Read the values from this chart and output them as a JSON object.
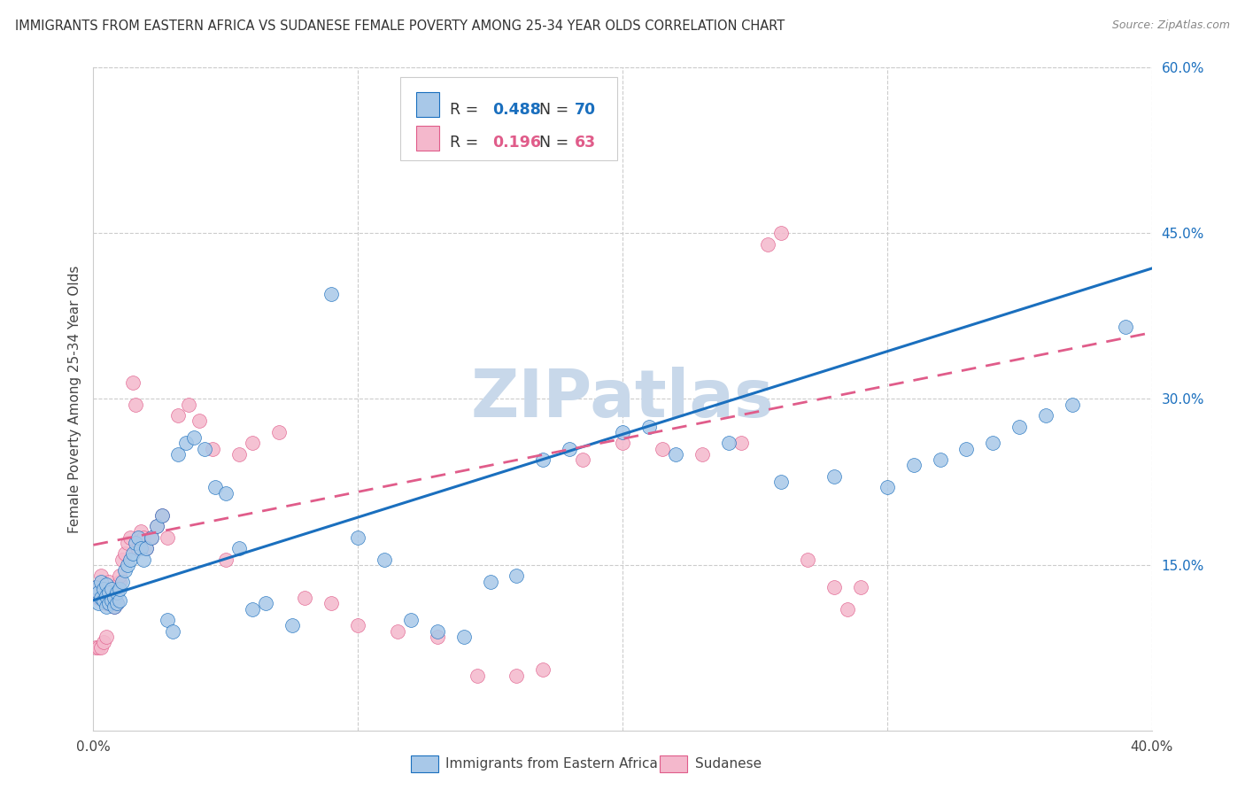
{
  "title": "IMMIGRANTS FROM EASTERN AFRICA VS SUDANESE FEMALE POVERTY AMONG 25-34 YEAR OLDS CORRELATION CHART",
  "source": "Source: ZipAtlas.com",
  "ylabel": "Female Poverty Among 25-34 Year Olds",
  "xlabel_blue": "Immigrants from Eastern Africa",
  "xlabel_pink": "Sudanese",
  "xlim": [
    0.0,
    0.4
  ],
  "ylim": [
    0.0,
    0.6
  ],
  "blue_R": 0.488,
  "blue_N": 70,
  "pink_R": 0.196,
  "pink_N": 63,
  "blue_color": "#a8c8e8",
  "pink_color": "#f4b8cc",
  "blue_line_color": "#1a6fbe",
  "pink_line_color": "#e05c8a",
  "watermark": "ZIPatlas",
  "watermark_color": "#c8d8ea",
  "blue_scatter_x": [
    0.001,
    0.002,
    0.002,
    0.003,
    0.003,
    0.004,
    0.004,
    0.005,
    0.005,
    0.005,
    0.006,
    0.006,
    0.007,
    0.007,
    0.008,
    0.008,
    0.009,
    0.009,
    0.01,
    0.01,
    0.011,
    0.012,
    0.013,
    0.014,
    0.015,
    0.016,
    0.017,
    0.018,
    0.019,
    0.02,
    0.022,
    0.024,
    0.026,
    0.028,
    0.03,
    0.032,
    0.035,
    0.038,
    0.042,
    0.046,
    0.05,
    0.055,
    0.06,
    0.065,
    0.075,
    0.09,
    0.1,
    0.11,
    0.12,
    0.13,
    0.14,
    0.15,
    0.16,
    0.17,
    0.18,
    0.2,
    0.21,
    0.22,
    0.24,
    0.26,
    0.28,
    0.3,
    0.31,
    0.32,
    0.33,
    0.34,
    0.35,
    0.36,
    0.37,
    0.39
  ],
  "blue_scatter_y": [
    0.13,
    0.125,
    0.115,
    0.12,
    0.135,
    0.118,
    0.128,
    0.112,
    0.122,
    0.132,
    0.115,
    0.125,
    0.118,
    0.128,
    0.112,
    0.12,
    0.115,
    0.125,
    0.118,
    0.128,
    0.135,
    0.145,
    0.15,
    0.155,
    0.16,
    0.17,
    0.175,
    0.165,
    0.155,
    0.165,
    0.175,
    0.185,
    0.195,
    0.1,
    0.09,
    0.25,
    0.26,
    0.265,
    0.255,
    0.22,
    0.215,
    0.165,
    0.11,
    0.115,
    0.095,
    0.395,
    0.175,
    0.155,
    0.1,
    0.09,
    0.085,
    0.135,
    0.14,
    0.245,
    0.255,
    0.27,
    0.275,
    0.25,
    0.26,
    0.225,
    0.23,
    0.22,
    0.24,
    0.245,
    0.255,
    0.26,
    0.275,
    0.285,
    0.295,
    0.365
  ],
  "pink_scatter_x": [
    0.001,
    0.001,
    0.002,
    0.002,
    0.003,
    0.003,
    0.004,
    0.004,
    0.005,
    0.005,
    0.005,
    0.006,
    0.006,
    0.006,
    0.007,
    0.007,
    0.008,
    0.008,
    0.009,
    0.009,
    0.01,
    0.01,
    0.011,
    0.012,
    0.013,
    0.014,
    0.015,
    0.016,
    0.017,
    0.018,
    0.019,
    0.02,
    0.022,
    0.024,
    0.026,
    0.028,
    0.032,
    0.036,
    0.04,
    0.045,
    0.05,
    0.055,
    0.06,
    0.07,
    0.08,
    0.09,
    0.1,
    0.115,
    0.13,
    0.145,
    0.16,
    0.17,
    0.185,
    0.2,
    0.215,
    0.23,
    0.245,
    0.255,
    0.26,
    0.27,
    0.28,
    0.285,
    0.29
  ],
  "pink_scatter_y": [
    0.13,
    0.075,
    0.12,
    0.075,
    0.14,
    0.075,
    0.12,
    0.08,
    0.115,
    0.125,
    0.085,
    0.115,
    0.125,
    0.135,
    0.118,
    0.128,
    0.112,
    0.125,
    0.115,
    0.128,
    0.135,
    0.14,
    0.155,
    0.16,
    0.17,
    0.175,
    0.315,
    0.295,
    0.165,
    0.18,
    0.175,
    0.165,
    0.175,
    0.185,
    0.195,
    0.175,
    0.285,
    0.295,
    0.28,
    0.255,
    0.155,
    0.25,
    0.26,
    0.27,
    0.12,
    0.115,
    0.095,
    0.09,
    0.085,
    0.05,
    0.05,
    0.055,
    0.245,
    0.26,
    0.255,
    0.25,
    0.26,
    0.44,
    0.45,
    0.155,
    0.13,
    0.11,
    0.13
  ]
}
